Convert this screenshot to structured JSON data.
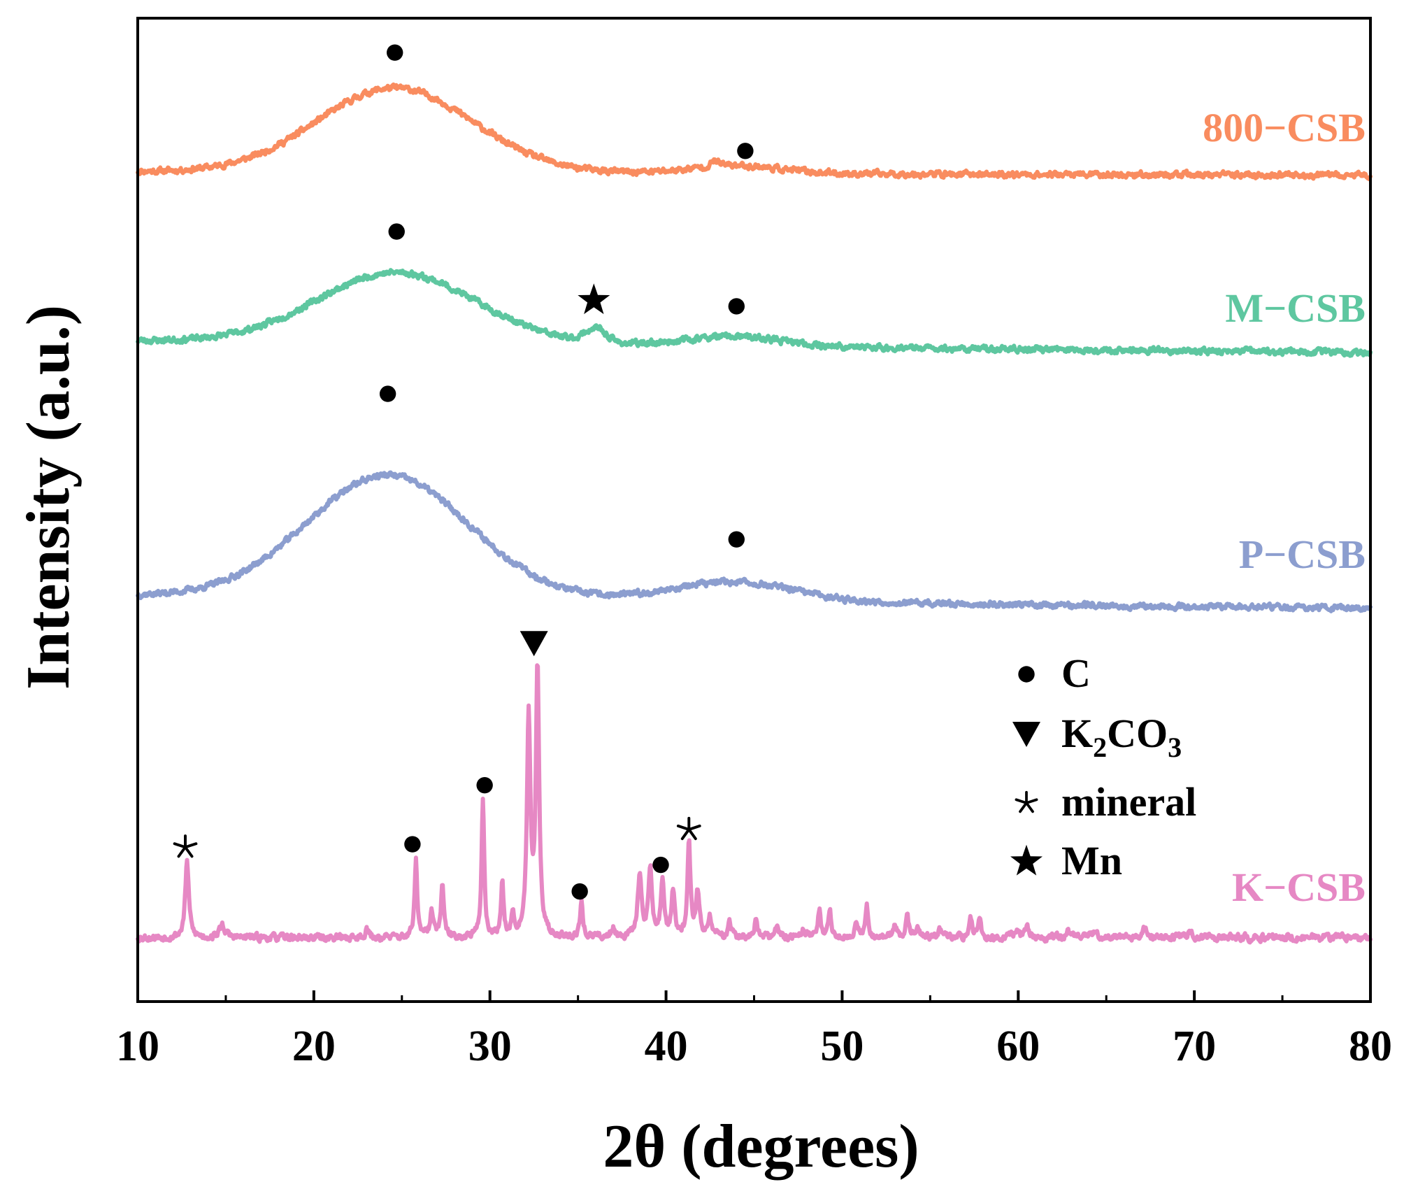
{
  "chart_data": {
    "type": "line",
    "xlabel": "2θ (degrees)",
    "ylabel": "Intensity (a.u.)",
    "xlim": [
      10,
      80
    ],
    "ylim": [
      0,
      100
    ],
    "xticks": [
      10,
      20,
      30,
      40,
      50,
      60,
      70,
      80
    ],
    "xtick_labels": [
      "10",
      "20",
      "30",
      "40",
      "50",
      "60",
      "70",
      "80"
    ],
    "grid": false,
    "series": [
      {
        "name": "800-CSB",
        "label": "800−CSB",
        "color": "#F98C5F",
        "baseline": 84,
        "peaks": [
          {
            "center": 24.6,
            "height": 8.6,
            "width": 4.4,
            "shape": "gauss"
          },
          {
            "center": 44.0,
            "height": 0.8,
            "width": 2.5,
            "shape": "gauss"
          },
          {
            "center": 42.8,
            "height": 0.6,
            "width": 0.25,
            "shape": "lorentz"
          }
        ],
        "background": {
          "start": 4.6,
          "end_at": 35,
          "tail": 0.4
        },
        "noise": 0.25,
        "seed": 11
      },
      {
        "name": "M-CSB",
        "label": "M−CSB",
        "color": "#5EC7A0",
        "baseline": 66,
        "peaks": [
          {
            "center": 24.7,
            "height": 7.2,
            "width": 4.5,
            "shape": "gauss"
          },
          {
            "center": 36.0,
            "height": 1.4,
            "width": 0.6,
            "shape": "gauss"
          },
          {
            "center": 43.8,
            "height": 1.0,
            "width": 2.8,
            "shape": "gauss"
          }
        ],
        "background": {
          "start": 5.5,
          "end_at": 40,
          "tail": 1.2
        },
        "noise": 0.25,
        "seed": 23
      },
      {
        "name": "P-CSB",
        "label": "P−CSB",
        "color": "#8C9ECF",
        "baseline": 40,
        "peaks": [
          {
            "center": 24.2,
            "height": 12.5,
            "width": 4.6,
            "shape": "gauss"
          },
          {
            "center": 43.8,
            "height": 2.0,
            "width": 3.5,
            "shape": "gauss"
          }
        ],
        "background": {
          "start": 7.0,
          "end_at": 38,
          "tail": 1.3
        },
        "noise": 0.25,
        "seed": 37
      },
      {
        "name": "K-CSB",
        "label": "K−CSB",
        "color": "#E688C4",
        "baseline": 6.5,
        "peaks": [
          {
            "center": 12.8,
            "height": 7.8,
            "width": 0.12,
            "shape": "lorentz"
          },
          {
            "center": 14.8,
            "height": 1.3,
            "width": 0.18,
            "shape": "lorentz"
          },
          {
            "center": 23.0,
            "height": 1.0,
            "width": 0.1,
            "shape": "lorentz"
          },
          {
            "center": 25.8,
            "height": 7.8,
            "width": 0.09,
            "shape": "lorentz"
          },
          {
            "center": 26.7,
            "height": 2.5,
            "width": 0.12,
            "shape": "lorentz"
          },
          {
            "center": 27.3,
            "height": 5.0,
            "width": 0.1,
            "shape": "lorentz"
          },
          {
            "center": 29.6,
            "height": 14.0,
            "width": 0.09,
            "shape": "lorentz"
          },
          {
            "center": 30.7,
            "height": 5.3,
            "width": 0.09,
            "shape": "lorentz"
          },
          {
            "center": 31.3,
            "height": 2.0,
            "width": 0.12,
            "shape": "lorentz"
          },
          {
            "center": 32.2,
            "height": 22.0,
            "width": 0.12,
            "shape": "lorentz"
          },
          {
            "center": 32.7,
            "height": 27.0,
            "width": 0.11,
            "shape": "lorentz"
          },
          {
            "center": 35.2,
            "height": 3.6,
            "width": 0.09,
            "shape": "lorentz"
          },
          {
            "center": 37.0,
            "height": 0.9,
            "width": 0.15,
            "shape": "lorentz"
          },
          {
            "center": 38.5,
            "height": 6.0,
            "width": 0.14,
            "shape": "lorentz"
          },
          {
            "center": 39.1,
            "height": 6.8,
            "width": 0.12,
            "shape": "lorentz"
          },
          {
            "center": 39.8,
            "height": 5.8,
            "width": 0.11,
            "shape": "lorentz"
          },
          {
            "center": 40.4,
            "height": 4.5,
            "width": 0.11,
            "shape": "lorentz"
          },
          {
            "center": 41.3,
            "height": 9.5,
            "width": 0.1,
            "shape": "lorentz"
          },
          {
            "center": 41.8,
            "height": 4.5,
            "width": 0.12,
            "shape": "lorentz"
          },
          {
            "center": 42.5,
            "height": 2.0,
            "width": 0.12,
            "shape": "lorentz"
          },
          {
            "center": 43.6,
            "height": 1.5,
            "width": 0.12,
            "shape": "lorentz"
          },
          {
            "center": 45.1,
            "height": 1.6,
            "width": 0.1,
            "shape": "lorentz"
          },
          {
            "center": 46.3,
            "height": 1.0,
            "width": 0.12,
            "shape": "lorentz"
          },
          {
            "center": 47.8,
            "height": 1.0,
            "width": 0.12,
            "shape": "lorentz"
          },
          {
            "center": 48.7,
            "height": 2.8,
            "width": 0.1,
            "shape": "lorentz"
          },
          {
            "center": 49.3,
            "height": 2.6,
            "width": 0.1,
            "shape": "lorentz"
          },
          {
            "center": 50.8,
            "height": 1.8,
            "width": 0.1,
            "shape": "lorentz"
          },
          {
            "center": 51.4,
            "height": 3.2,
            "width": 0.1,
            "shape": "lorentz"
          },
          {
            "center": 53.0,
            "height": 1.2,
            "width": 0.12,
            "shape": "lorentz"
          },
          {
            "center": 53.7,
            "height": 2.2,
            "width": 0.1,
            "shape": "lorentz"
          },
          {
            "center": 54.3,
            "height": 1.2,
            "width": 0.12,
            "shape": "lorentz"
          },
          {
            "center": 55.6,
            "height": 0.9,
            "width": 0.12,
            "shape": "lorentz"
          },
          {
            "center": 57.3,
            "height": 1.7,
            "width": 0.1,
            "shape": "lorentz"
          },
          {
            "center": 57.8,
            "height": 2.1,
            "width": 0.1,
            "shape": "lorentz"
          },
          {
            "center": 59.9,
            "height": 0.9,
            "width": 0.12,
            "shape": "lorentz"
          },
          {
            "center": 60.5,
            "height": 1.0,
            "width": 0.12,
            "shape": "lorentz"
          },
          {
            "center": 62.8,
            "height": 0.8,
            "width": 0.12,
            "shape": "lorentz"
          },
          {
            "center": 64.4,
            "height": 0.9,
            "width": 0.12,
            "shape": "lorentz"
          },
          {
            "center": 67.2,
            "height": 1.1,
            "width": 0.12,
            "shape": "lorentz"
          },
          {
            "center": 69.8,
            "height": 0.8,
            "width": 0.12,
            "shape": "lorentz"
          }
        ],
        "background": {
          "start": 0,
          "end_at": 40,
          "tail": 0
        },
        "noise": 0.3,
        "seed": 53
      }
    ],
    "annotations": [
      {
        "series": "800-CSB",
        "symbol": "circle",
        "x": 24.6,
        "y": 96.5
      },
      {
        "series": "800-CSB",
        "symbol": "circle",
        "x": 44.5,
        "y": 86.5
      },
      {
        "series": "M-CSB",
        "symbol": "circle",
        "x": 24.7,
        "y": 78.3
      },
      {
        "series": "M-CSB",
        "symbol": "star",
        "x": 35.9,
        "y": 71.3
      },
      {
        "series": "M-CSB",
        "symbol": "circle",
        "x": 44.0,
        "y": 70.7
      },
      {
        "series": "P-CSB",
        "symbol": "circle",
        "x": 24.2,
        "y": 61.8
      },
      {
        "series": "P-CSB",
        "symbol": "circle",
        "x": 44.0,
        "y": 47.0
      },
      {
        "series": "K-CSB",
        "symbol": "asterisk",
        "x": 12.7,
        "y": 15.7
      },
      {
        "series": "K-CSB",
        "symbol": "circle",
        "x": 25.6,
        "y": 16.0
      },
      {
        "series": "K-CSB",
        "symbol": "circle",
        "x": 29.7,
        "y": 22.0
      },
      {
        "series": "K-CSB",
        "symbol": "triangle-down",
        "x": 32.5,
        "y": 36.4
      },
      {
        "series": "K-CSB",
        "symbol": "circle",
        "x": 35.1,
        "y": 11.2
      },
      {
        "series": "K-CSB",
        "symbol": "circle",
        "x": 39.7,
        "y": 13.9
      },
      {
        "series": "K-CSB",
        "symbol": "asterisk",
        "x": 41.3,
        "y": 17.5
      }
    ],
    "legend": {
      "position": "bottom-right",
      "entries": [
        {
          "symbol": "circle",
          "label": "C"
        },
        {
          "symbol": "triangle-down",
          "label": "K",
          "subscript": "2",
          "label2": "CO",
          "subscript2": "3",
          "full_label": "K2CO3"
        },
        {
          "symbol": "asterisk",
          "label": "mineral"
        },
        {
          "symbol": "star",
          "label": "Mn"
        }
      ]
    }
  }
}
